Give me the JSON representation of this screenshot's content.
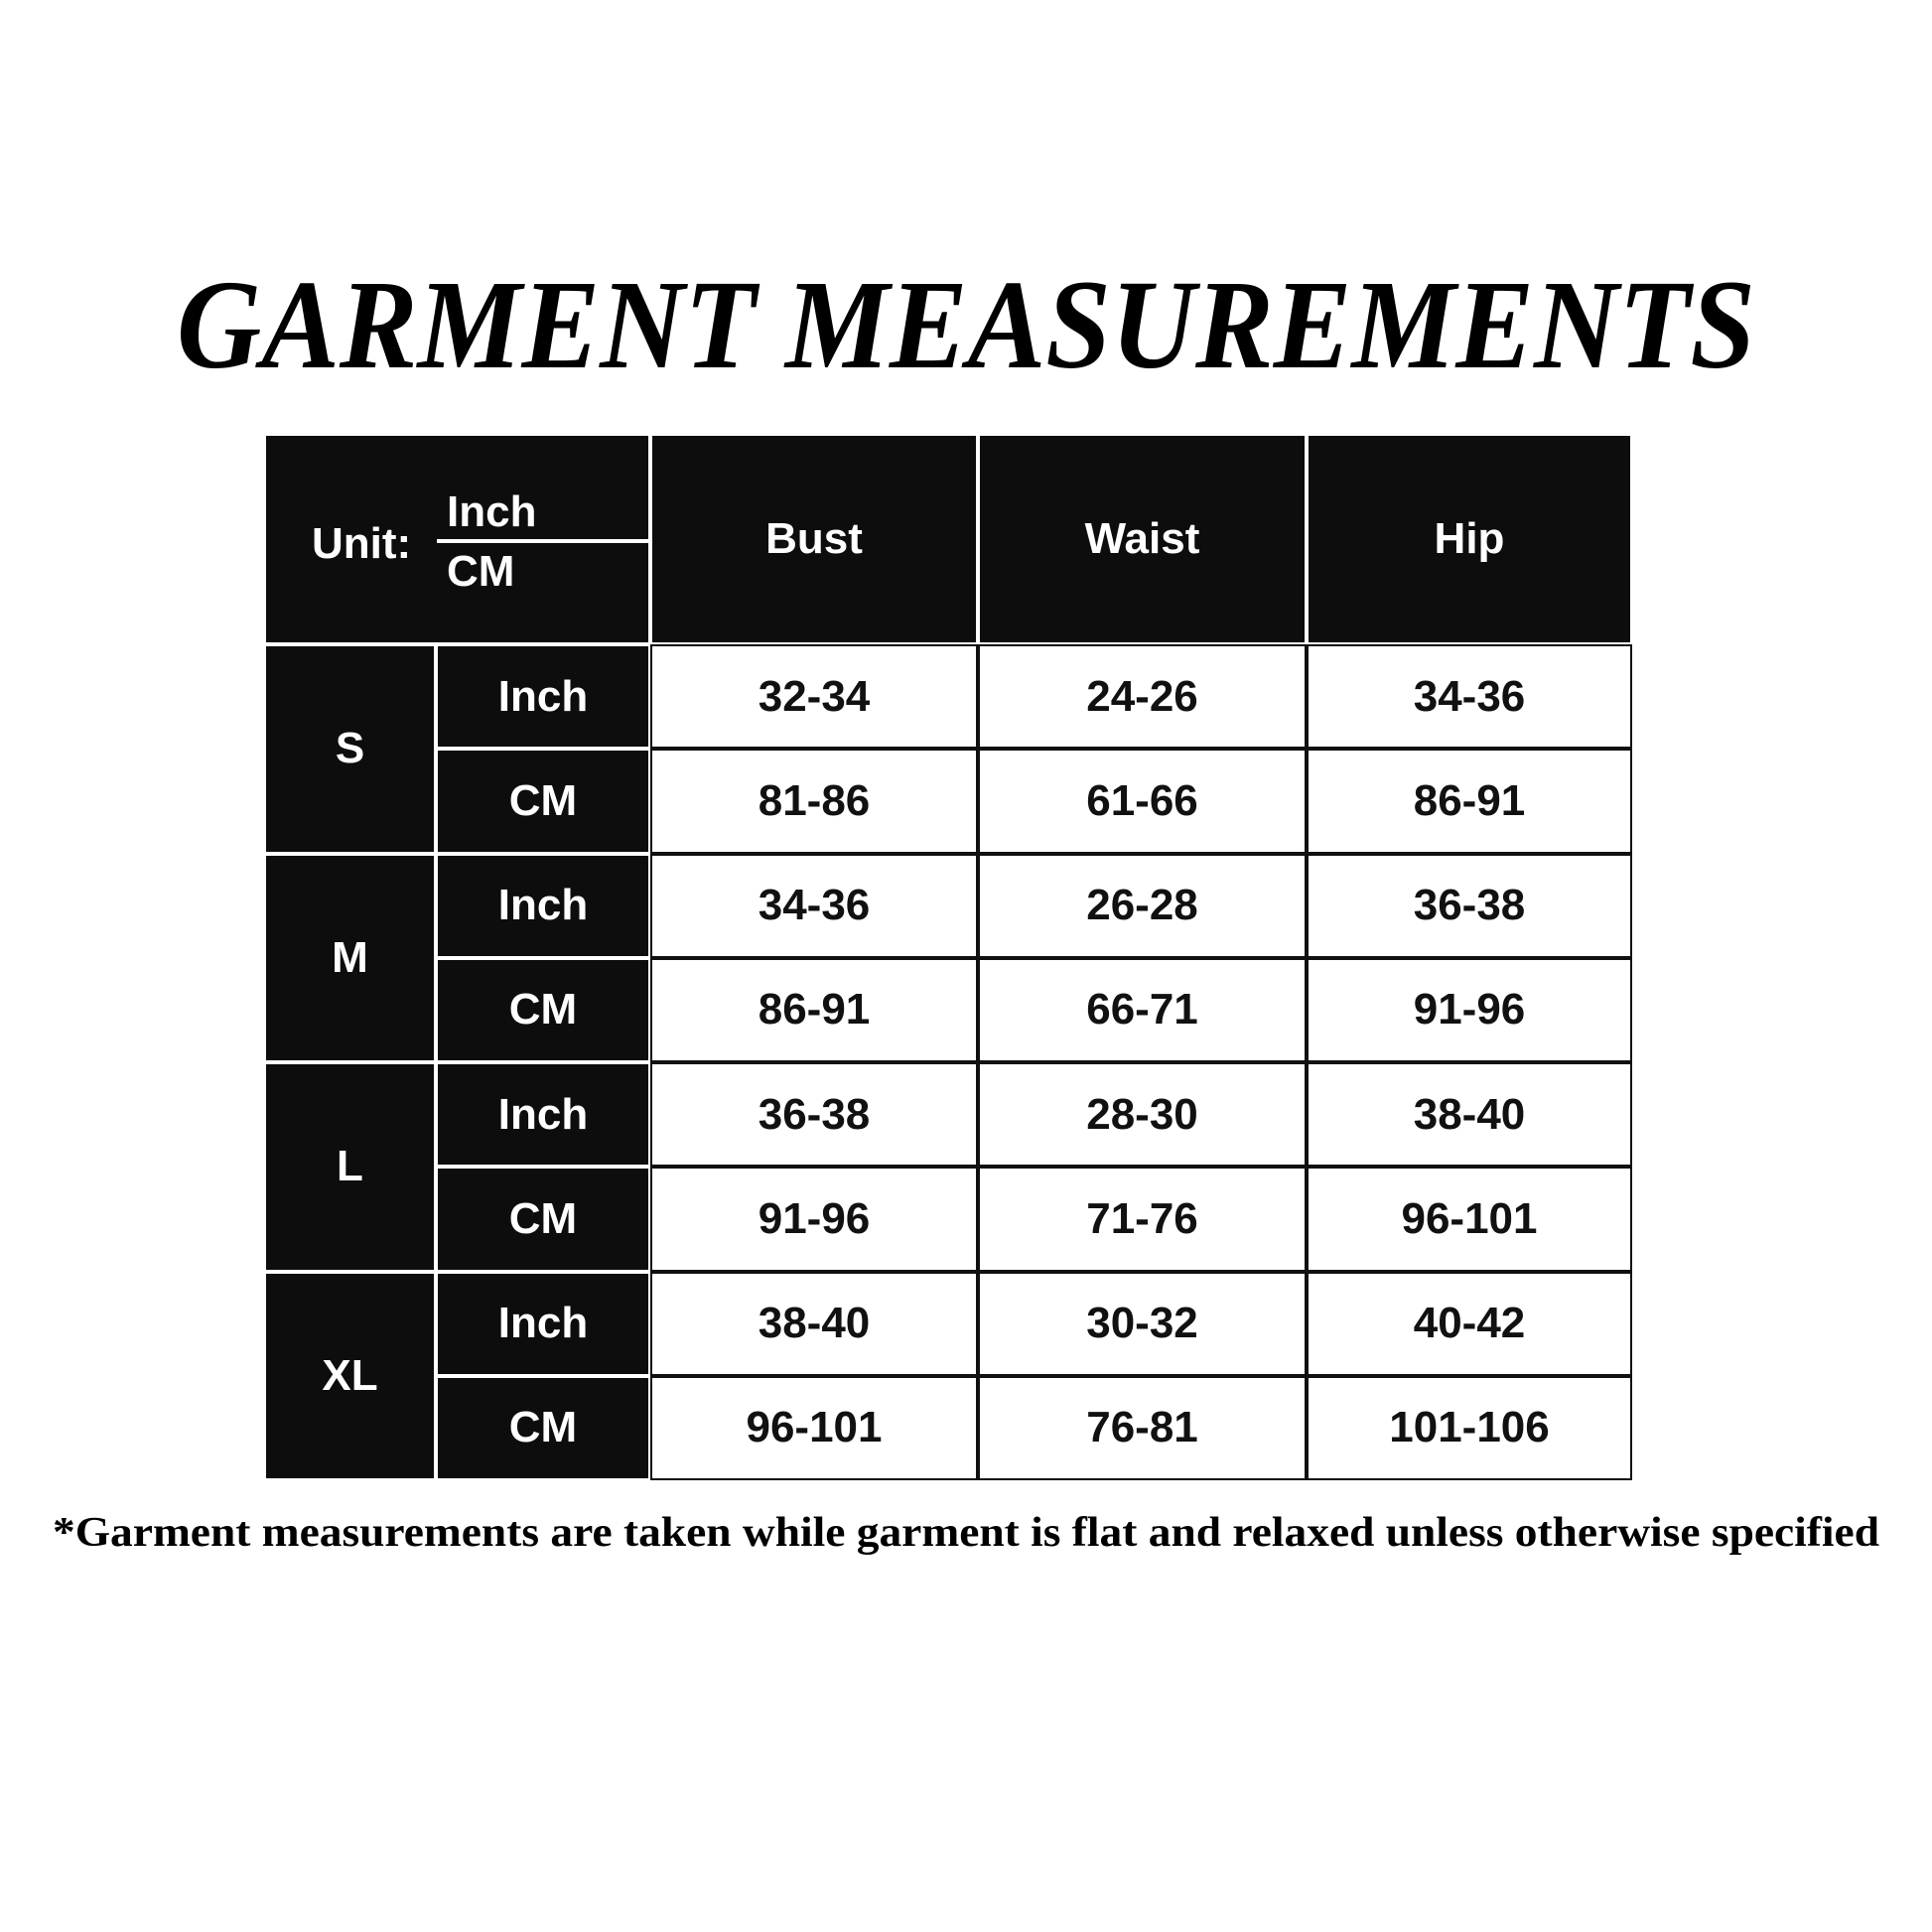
{
  "title": "GARMENT MEASUREMENTS",
  "table": {
    "unit_label": "Unit:",
    "unit_top": "Inch",
    "unit_bottom": "CM",
    "columns": [
      "Bust",
      "Waist",
      "Hip"
    ],
    "sizes": [
      {
        "size": "S",
        "rows": [
          {
            "unit": "Inch",
            "values": [
              "32-34",
              "24-26",
              "34-36"
            ]
          },
          {
            "unit": "CM",
            "values": [
              "81-86",
              "61-66",
              "86-91"
            ]
          }
        ]
      },
      {
        "size": "M",
        "rows": [
          {
            "unit": "Inch",
            "values": [
              "34-36",
              "26-28",
              "36-38"
            ]
          },
          {
            "unit": "CM",
            "values": [
              "86-91",
              "66-71",
              "91-96"
            ]
          }
        ]
      },
      {
        "size": "L",
        "rows": [
          {
            "unit": "Inch",
            "values": [
              "36-38",
              "28-30",
              "38-40"
            ]
          },
          {
            "unit": "CM",
            "values": [
              "91-96",
              "71-76",
              "96-101"
            ]
          }
        ]
      },
      {
        "size": "XL",
        "rows": [
          {
            "unit": "Inch",
            "values": [
              "38-40",
              "30-32",
              "40-42"
            ]
          },
          {
            "unit": "CM",
            "values": [
              "96-101",
              "76-81",
              "101-106"
            ]
          }
        ]
      }
    ]
  },
  "footnote": "*Garment measurements are taken while garment is flat and relaxed unless otherwise specified"
}
